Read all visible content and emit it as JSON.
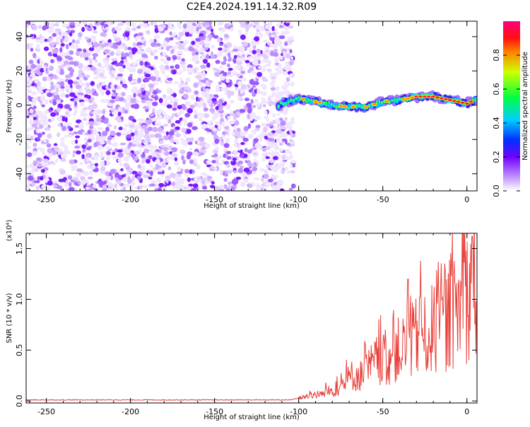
{
  "title": "C2E4.2024.191.14.32.R09",
  "colors": {
    "line": "#e8403a",
    "axis": "#000000"
  },
  "chart_data": [
    {
      "type": "heatmap",
      "xlabel": "Height of straight line (km)",
      "ylabel": "Frequency (Hz)",
      "xlim": [
        -262,
        6
      ],
      "ylim": [
        -50,
        49
      ],
      "xticks": [
        "-250",
        "-200",
        "-150",
        "-100",
        "-50",
        "0"
      ],
      "yticks": [
        "40",
        "20",
        "0",
        "-20",
        "-40"
      ],
      "colorbar": {
        "label": "Normalized spectral amplitude",
        "range": [
          0,
          1
        ],
        "ticks": [
          "0.0",
          "0.2",
          "0.4",
          "0.6",
          "0.8"
        ]
      },
      "signal_track": [
        {
          "x": -112,
          "y": 0
        },
        {
          "x": -100,
          "y": 4
        },
        {
          "x": -90,
          "y": 2
        },
        {
          "x": -80,
          "y": 0
        },
        {
          "x": -70,
          "y": -1
        },
        {
          "x": -60,
          "y": -1
        },
        {
          "x": -50,
          "y": 2
        },
        {
          "x": -40,
          "y": 3
        },
        {
          "x": -30,
          "y": 5
        },
        {
          "x": -20,
          "y": 5
        },
        {
          "x": -10,
          "y": 3
        },
        {
          "x": 0,
          "y": 1
        },
        {
          "x": 5,
          "y": 3
        }
      ],
      "noise_region_x": [
        -262,
        -103
      ]
    },
    {
      "type": "line",
      "xlabel": "Height of straight line (km)",
      "ylabel": "SNR (10 * v/v)",
      "yscale_label": "(x10⁴)",
      "xlim": [
        -262,
        6
      ],
      "ylim": [
        -0.02,
        1.65
      ],
      "xticks": [
        "-250",
        "-200",
        "-150",
        "-100",
        "-50",
        "0"
      ],
      "yticks": [
        "0.0",
        "0.5",
        "1.0",
        "1.5"
      ],
      "series": [
        {
          "x": [
            -262,
            -200,
            -150,
            -105,
            -100,
            -96,
            -92,
            -88,
            -84,
            -80,
            -76,
            -72,
            -68,
            -64,
            -60,
            -56,
            -52,
            -48,
            -44,
            -40,
            -36,
            -32,
            -28,
            -24,
            -20,
            -16,
            -12,
            -8,
            -4,
            0,
            2,
            4,
            6
          ],
          "values": [
            0.01,
            0.01,
            0.01,
            0.01,
            0.03,
            0.05,
            0.08,
            0.06,
            0.1,
            0.12,
            0.15,
            0.22,
            0.3,
            0.28,
            0.35,
            0.42,
            0.5,
            0.45,
            0.55,
            0.6,
            0.62,
            0.7,
            0.78,
            0.72,
            0.85,
            0.8,
            0.95,
            1.0,
            1.1,
            1.2,
            1.35,
            1.5,
            1.3
          ],
          "peaks": [
            {
              "x": -35,
              "y": 1.2
            },
            {
              "x": -28,
              "y": 1.02
            },
            {
              "x": 3,
              "y": 1.62
            }
          ]
        }
      ]
    }
  ]
}
